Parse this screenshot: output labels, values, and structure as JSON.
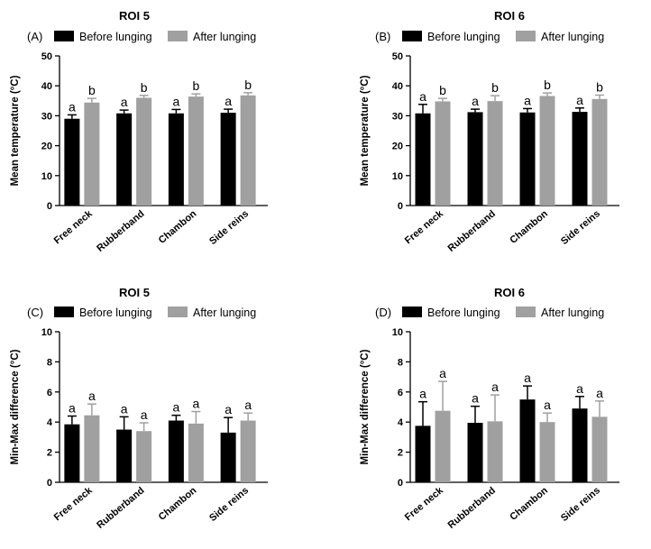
{
  "chart_data": [
    {
      "type": "bar",
      "panel_label": "(A)",
      "title": "ROI 5",
      "categories": [
        "Free neck",
        "Rubberband",
        "Chambon",
        "Side reins"
      ],
      "series": [
        {
          "name": "Before lunging",
          "color": "#000000",
          "values": [
            29.0,
            30.8,
            30.8,
            31.0
          ],
          "errors": [
            1.3,
            1.1,
            1.3,
            1.2
          ],
          "letters": [
            "a",
            "a",
            "a",
            "a"
          ]
        },
        {
          "name": "After lunging",
          "color": "#a0a0a0",
          "values": [
            34.4,
            36.0,
            36.4,
            36.8
          ],
          "errors": [
            1.4,
            0.8,
            0.9,
            0.9
          ],
          "letters": [
            "b",
            "b",
            "b",
            "b"
          ]
        }
      ],
      "ylabel": "Mean temperature (°C)",
      "ylim": [
        0,
        50
      ],
      "yticks": [
        0,
        10,
        20,
        30,
        40,
        50
      ],
      "legend_position": "top"
    },
    {
      "type": "bar",
      "panel_label": "(B)",
      "title": "ROI 6",
      "categories": [
        "Free neck",
        "Rubberband",
        "Chambon",
        "Side reins"
      ],
      "series": [
        {
          "name": "Before lunging",
          "color": "#000000",
          "values": [
            30.8,
            31.2,
            31.1,
            31.3
          ],
          "errors": [
            3.0,
            1.0,
            1.3,
            1.3
          ],
          "letters": [
            "a",
            "a",
            "a",
            "a"
          ]
        },
        {
          "name": "After lunging",
          "color": "#a0a0a0",
          "values": [
            34.8,
            34.9,
            36.6,
            35.6
          ],
          "errors": [
            1.0,
            1.8,
            1.0,
            1.3
          ],
          "letters": [
            "b",
            "b",
            "b",
            "b"
          ]
        }
      ],
      "ylabel": "Mean temperature (°C)",
      "ylim": [
        0,
        50
      ],
      "yticks": [
        0,
        10,
        20,
        30,
        40,
        50
      ],
      "legend_position": "top"
    },
    {
      "type": "bar",
      "panel_label": "(C)",
      "title": "ROI 5",
      "categories": [
        "Free neck",
        "Rubberband",
        "Chambon",
        "Side reins"
      ],
      "series": [
        {
          "name": "Before lunging",
          "color": "#000000",
          "values": [
            3.85,
            3.5,
            4.1,
            3.3
          ],
          "errors": [
            0.55,
            0.85,
            0.35,
            1.0
          ],
          "letters": [
            "a",
            "a",
            "a",
            "a"
          ]
        },
        {
          "name": "After lunging",
          "color": "#a0a0a0",
          "values": [
            4.45,
            3.4,
            3.9,
            4.1
          ],
          "errors": [
            0.75,
            0.55,
            0.8,
            0.5
          ],
          "letters": [
            "a",
            "a",
            "a",
            "a"
          ]
        }
      ],
      "ylabel": "Min-Max difference (°C)",
      "ylim": [
        0,
        10
      ],
      "yticks": [
        0,
        2,
        4,
        6,
        8,
        10
      ],
      "legend_position": "top"
    },
    {
      "type": "bar",
      "panel_label": "(D)",
      "title": "ROI 6",
      "categories": [
        "Free neck",
        "Rubberband",
        "Chambon",
        "Side reins"
      ],
      "series": [
        {
          "name": "Before lunging",
          "color": "#000000",
          "values": [
            3.75,
            3.95,
            5.5,
            4.9
          ],
          "errors": [
            1.6,
            1.1,
            0.9,
            0.8
          ],
          "letters": [
            "a",
            "a",
            "a",
            "a"
          ]
        },
        {
          "name": "After lunging",
          "color": "#a0a0a0",
          "values": [
            4.75,
            4.05,
            4.0,
            4.35
          ],
          "errors": [
            1.95,
            1.75,
            0.6,
            1.05
          ],
          "letters": [
            "a",
            "a",
            "a",
            "a"
          ]
        }
      ],
      "ylabel": "Min-Max difference (°C)",
      "ylim": [
        0,
        10
      ],
      "yticks": [
        0,
        2,
        4,
        6,
        8,
        10
      ],
      "legend_position": "top"
    }
  ]
}
